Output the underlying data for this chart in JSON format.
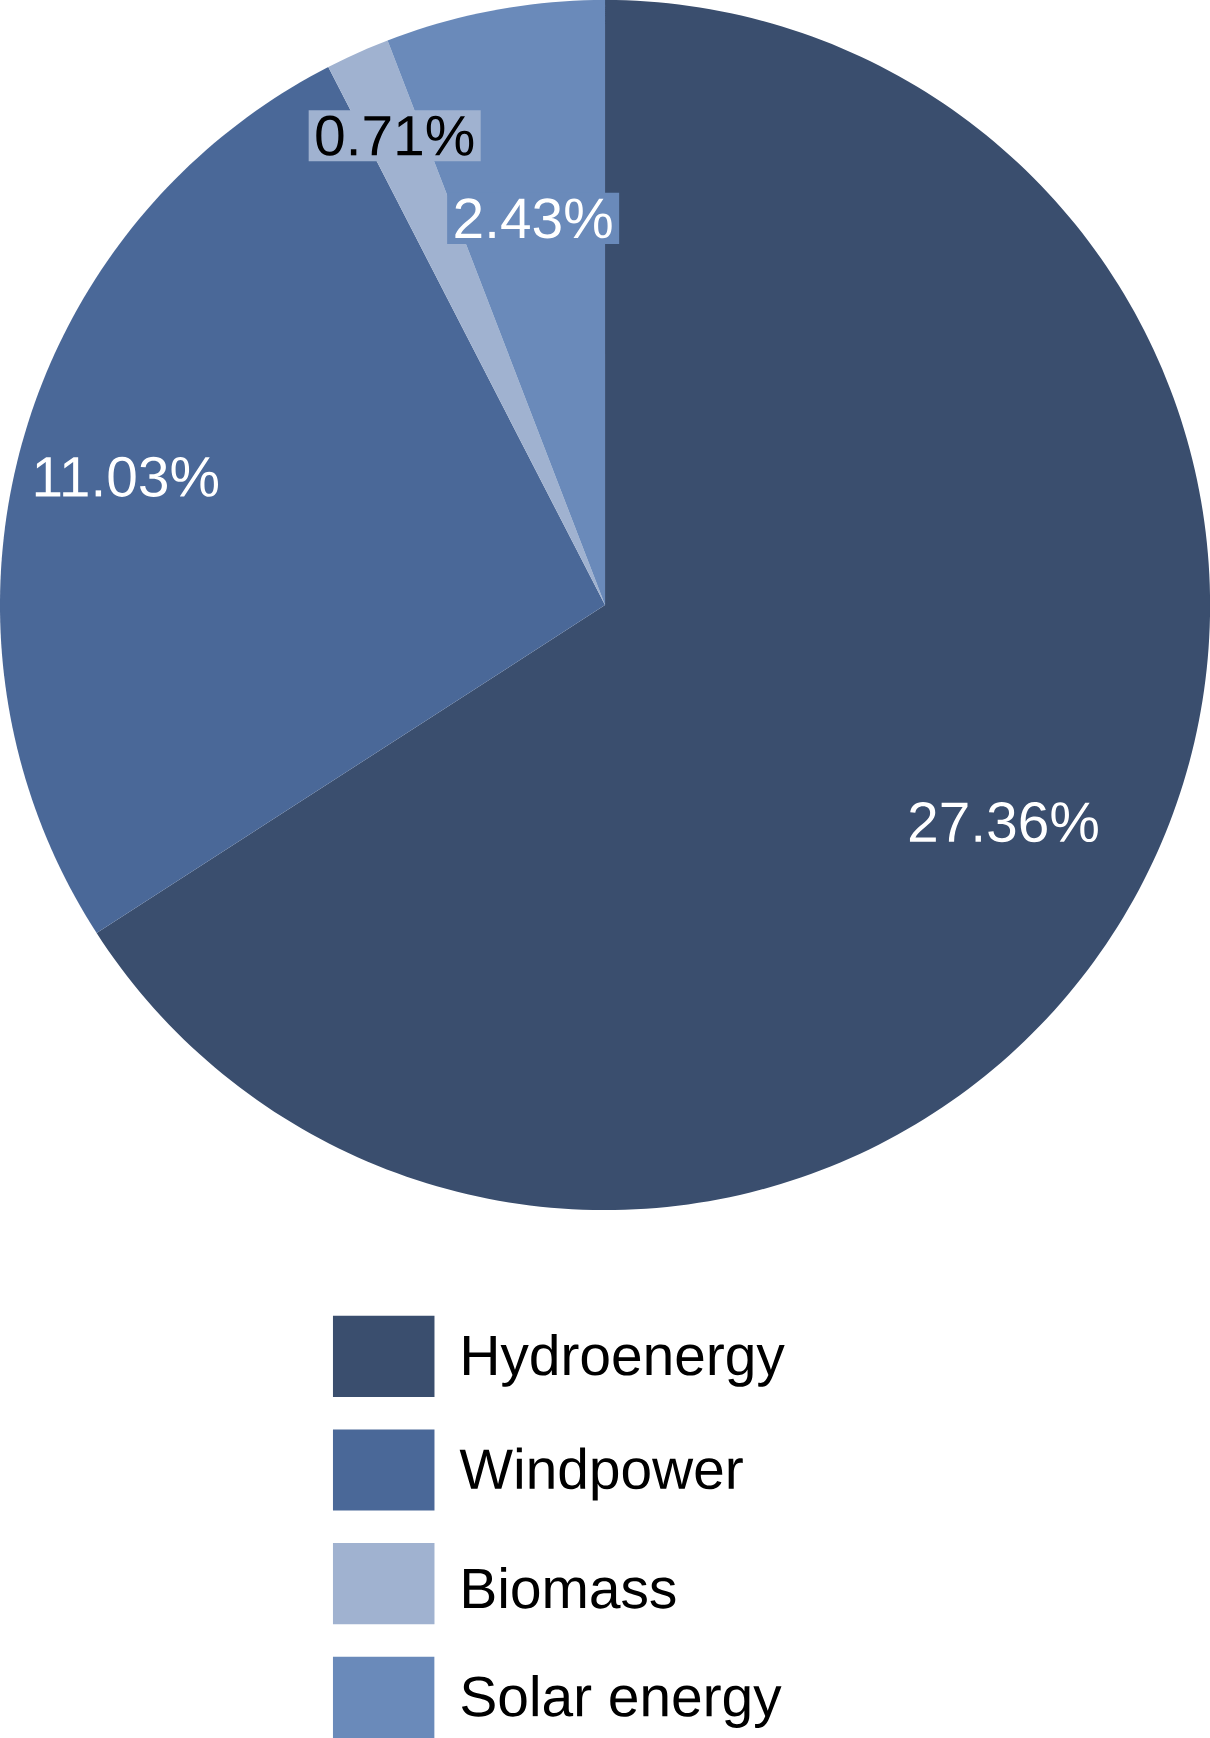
{
  "chart_data": {
    "type": "pie",
    "categories": [
      "Hydroenergy",
      "Windpower",
      "Biomass",
      "Solar energy"
    ],
    "values": [
      27.36,
      11.03,
      0.71,
      2.43
    ],
    "value_labels": [
      "27.36%",
      "11.03%",
      "0.71%",
      "2.43%"
    ],
    "colors": [
      "#3a4e6e",
      "#4a6898",
      "#a0b2d0",
      "#6a8aba"
    ],
    "legend": "bottom"
  }
}
